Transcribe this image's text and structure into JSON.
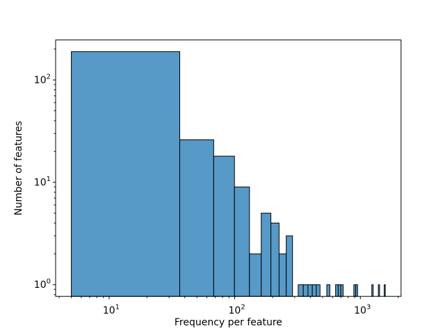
{
  "window": {
    "background": "#ffffff"
  },
  "chart_data": {
    "type": "bar",
    "subtype": "histogram",
    "title": "",
    "xlabel": "Frequency per feature",
    "ylabel": "Number of features",
    "xscale": "log",
    "yscale": "log",
    "xlim": [
      3.75,
      2109
    ],
    "ylim": [
      0.769,
      245.6
    ],
    "grid": false,
    "legend_position": "none",
    "colors": {
      "bar_fill": "#5799c7",
      "bar_edge": "#000000",
      "axis": "#000000",
      "text": "#000000",
      "background": "#ffffff"
    },
    "bin_edges": [
      5,
      36.5,
      68,
      99.5,
      131,
      162.5,
      194,
      225.5,
      257,
      288.5,
      320,
      351.5,
      383,
      414.5,
      446,
      477.5,
      509,
      540.5,
      572,
      603.5,
      635,
      666.5,
      698,
      729.5,
      761,
      792.5,
      824,
      855.5,
      887,
      918.5,
      950,
      981.5,
      1013,
      1044.5,
      1076,
      1107.5,
      1139,
      1170.5,
      1202,
      1233.5,
      1265,
      1296.5,
      1328,
      1359.5,
      1391,
      1422.5,
      1454,
      1485.5,
      1517,
      1548.5,
      1580
    ],
    "counts": [
      189,
      26,
      18,
      9,
      2,
      5,
      4,
      2,
      3,
      0,
      1,
      1,
      1,
      1,
      1,
      0,
      0,
      1,
      0,
      0,
      1,
      1,
      1,
      0,
      0,
      0,
      0,
      0,
      1,
      1,
      0,
      0,
      0,
      0,
      0,
      0,
      0,
      0,
      0,
      1,
      0,
      0,
      0,
      0,
      1,
      0,
      0,
      0,
      0,
      1
    ],
    "x_major_ticks": [
      {
        "value": 10,
        "mantissa": "10",
        "exponent": "1"
      },
      {
        "value": 100,
        "mantissa": "10",
        "exponent": "2"
      },
      {
        "value": 1000,
        "mantissa": "10",
        "exponent": "3"
      }
    ],
    "y_major_ticks": [
      {
        "value": 1,
        "mantissa": "10",
        "exponent": "0"
      },
      {
        "value": 10,
        "mantissa": "10",
        "exponent": "1"
      },
      {
        "value": 100,
        "mantissa": "10",
        "exponent": "2"
      }
    ],
    "x_minor_ticks": [
      4,
      5,
      6,
      7,
      8,
      9,
      20,
      30,
      40,
      50,
      60,
      70,
      80,
      90,
      200,
      300,
      400,
      500,
      600,
      700,
      800,
      900,
      2000
    ],
    "y_minor_ticks": [
      0.8,
      0.9,
      2,
      3,
      4,
      5,
      6,
      7,
      8,
      9,
      20,
      30,
      40,
      50,
      60,
      70,
      80,
      90,
      200
    ]
  }
}
